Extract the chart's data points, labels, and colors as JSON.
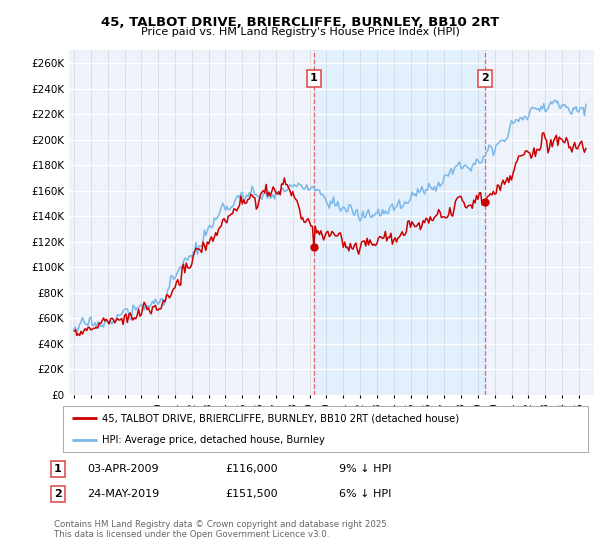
{
  "title_line1": "45, TALBOT DRIVE, BRIERCLIFFE, BURNLEY, BB10 2RT",
  "title_line2": "Price paid vs. HM Land Registry's House Price Index (HPI)",
  "ylim": [
    0,
    270000
  ],
  "yticks": [
    0,
    20000,
    40000,
    60000,
    80000,
    100000,
    120000,
    140000,
    160000,
    180000,
    200000,
    220000,
    240000,
    260000
  ],
  "ytick_labels": [
    "£0",
    "£20K",
    "£40K",
    "£60K",
    "£80K",
    "£100K",
    "£120K",
    "£140K",
    "£160K",
    "£180K",
    "£200K",
    "£220K",
    "£240K",
    "£260K"
  ],
  "hpi_color": "#7ab8e8",
  "price_color": "#cc0000",
  "vline_color": "#dd4444",
  "shade_color": "#ddeeff",
  "marker1_year": 2009.29,
  "marker1_price": 116000,
  "marker2_year": 2019.38,
  "marker2_price": 151500,
  "legend_line1": "45, TALBOT DRIVE, BRIERCLIFFE, BURNLEY, BB10 2RT (detached house)",
  "legend_line2": "HPI: Average price, detached house, Burnley",
  "row1_num": "1",
  "row1_date": "03-APR-2009",
  "row1_price": "£116,000",
  "row1_pct": "9% ↓ HPI",
  "row2_num": "2",
  "row2_date": "24-MAY-2019",
  "row2_price": "£151,500",
  "row2_pct": "6% ↓ HPI",
  "footer": "Contains HM Land Registry data © Crown copyright and database right 2025.\nThis data is licensed under the Open Government Licence v3.0.",
  "background_color": "#ffffff",
  "plot_bg_color": "#eef2fb"
}
